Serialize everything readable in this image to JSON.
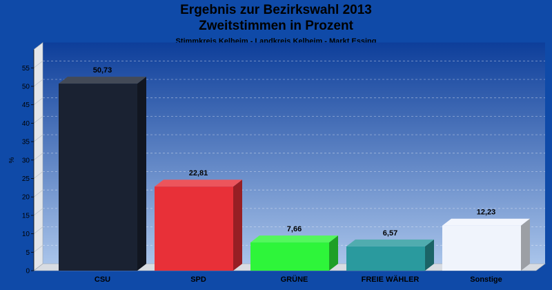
{
  "header": {
    "title": "Ergebnis zur Bezirkswahl 2013",
    "subtitle": "Zweitstimmen in Prozent",
    "caption": "Stimmkreis Kelheim - Landkreis Kelheim - Markt Essing"
  },
  "chart_data": {
    "type": "bar",
    "title": "Ergebnis zur Bezirkswahl 2013",
    "subtitle": "Zweitstimmen in Prozent",
    "xlabel": "",
    "ylabel": "%",
    "ylim": [
      0,
      60
    ],
    "yticks": [
      0,
      5,
      10,
      15,
      20,
      25,
      30,
      35,
      40,
      45,
      50,
      55
    ],
    "grid": true,
    "legend": "none",
    "categories": [
      "CSU",
      "SPD",
      "GRÜNE",
      "FREIE WÄHLER",
      "Sonstige"
    ],
    "values": [
      50.73,
      22.81,
      7.66,
      6.57,
      12.23
    ],
    "labels": [
      "50,73",
      "22,81",
      "7,66",
      "6,57",
      "12,23"
    ],
    "colors": [
      "#1a2232",
      "#e83038",
      "#2ef53a",
      "#2a9a9e",
      "#f0f4fc"
    ]
  },
  "colors": {
    "background": "#0f4aa8",
    "plot_top": "#0d3e9a",
    "plot_bottom": "#a9c4ea",
    "wall": "#e3e6ea"
  }
}
